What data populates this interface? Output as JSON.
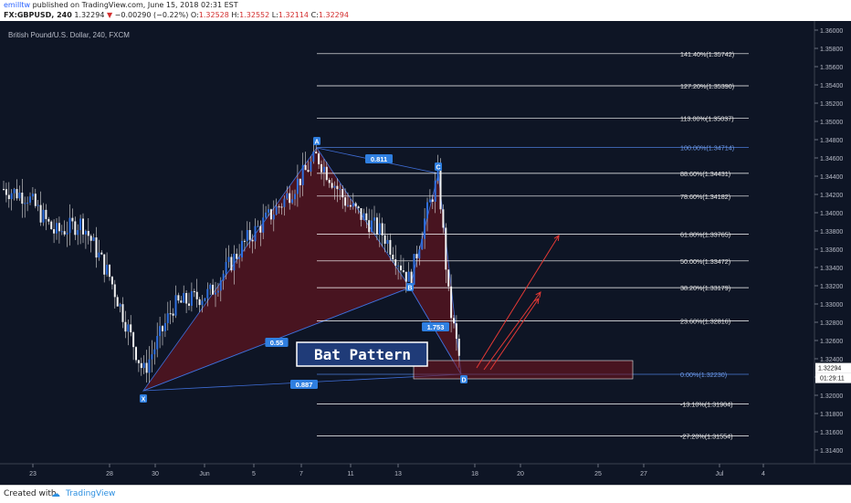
{
  "header": {
    "author": "emilltw",
    "published": " published on TradingView.com, June 15, 2018 02:31 EST",
    "symbol": "FX:GBPUSD, 240",
    "last": "1.32294",
    "arrow": "▼",
    "change": "−0.00290 (−0.22%)",
    "o_label": "O:",
    "o_value": "1.32528",
    "h_label": "H:",
    "h_value": "1.32552",
    "l_label": "L:",
    "l_value": "1.32114",
    "c_label": "C:",
    "c_value": "1.32294"
  },
  "footer": {
    "created_with": "Created with",
    "brand": "TradingView"
  },
  "chart_data": {
    "type": "candlestick",
    "title": "British Pound/U.S. Dollar, 240, FXCM",
    "ylim": [
      1.3125,
      1.361
    ],
    "y_ticks": [
      "1.36000",
      "1.35800",
      "1.35600",
      "1.35400",
      "1.35200",
      "1.35000",
      "1.34800",
      "1.34600",
      "1.34400",
      "1.34200",
      "1.34000",
      "1.33800",
      "1.33600",
      "1.33400",
      "1.33200",
      "1.33000",
      "1.32800",
      "1.32600",
      "1.32400",
      "1.32200",
      "1.32000",
      "1.31800",
      "1.31600",
      "1.31400"
    ],
    "x_ticks": [
      "23",
      "28",
      "30",
      "Jun",
      "5",
      "7",
      "11",
      "13",
      "18",
      "20",
      "25",
      "27",
      "Jul",
      "4"
    ],
    "last_price": "1.32294",
    "countdown": "01:29:11",
    "fib_levels": [
      {
        "label": "141.40%(1.35742)",
        "value": 1.35742
      },
      {
        "label": "127.20%(1.35390)",
        "value": 1.3539
      },
      {
        "label": "113.00%(1.35037)",
        "value": 1.35037
      },
      {
        "label": "100.00%(1.34714)",
        "value": 1.34714
      },
      {
        "label": "88.60%(1.34431)",
        "value": 1.34431
      },
      {
        "label": "78.60%(1.34182)",
        "value": 1.34182
      },
      {
        "label": "61.80%(1.33765)",
        "value": 1.33765
      },
      {
        "label": "50.00%(1.33472)",
        "value": 1.33472
      },
      {
        "label": "38.20%(1.33179)",
        "value": 1.33179
      },
      {
        "label": "23.60%(1.32816)",
        "value": 1.32816
      },
      {
        "label": "0.00%(1.32230)",
        "value": 1.3223
      },
      {
        "label": "-13.10%(1.31904)",
        "value": 1.31904
      },
      {
        "label": "-27.20%(1.31554)",
        "value": 1.31554
      }
    ],
    "pattern": {
      "name": "Bat Pattern",
      "points": [
        {
          "label": "X",
          "date": "May 29",
          "price": 1.3205
        },
        {
          "label": "A",
          "date": "Jun 7",
          "price": 1.3471
        },
        {
          "label": "B",
          "date": "Jun 13",
          "price": 1.3318
        },
        {
          "label": "C",
          "date": "Jun 14",
          "price": 1.3443
        },
        {
          "label": "D",
          "date": "Jun 15",
          "price": 1.3223
        }
      ],
      "ratios": [
        {
          "label": "0.811",
          "from": "A",
          "to": "C"
        },
        {
          "label": "0.55",
          "from": "X",
          "to": "B"
        },
        {
          "label": "1.753",
          "from": "B",
          "to": "D"
        },
        {
          "label": "0.887",
          "from": "X",
          "to": "D"
        }
      ]
    }
  }
}
